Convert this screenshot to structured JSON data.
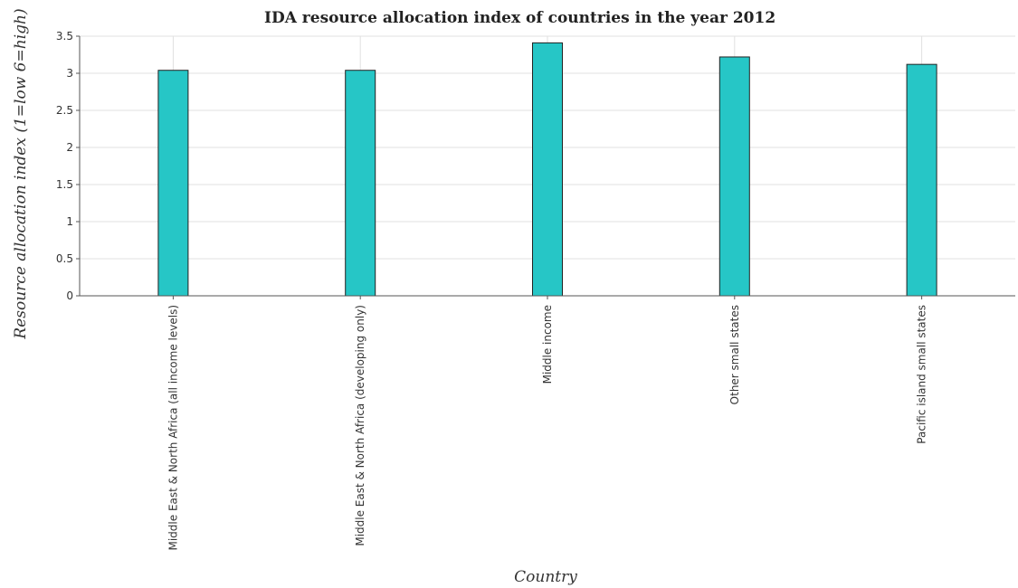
{
  "chart_data": {
    "type": "bar",
    "title": "IDA resource allocation index of countries in the year 2012",
    "xlabel": "Country",
    "ylabel": "Resource allocation index (1=low 6=high)",
    "categories": [
      "Middle East & North Africa (all income levels)",
      "Middle East & North Africa (developing only)",
      "Middle income",
      "Other small states",
      "Pacific island small states"
    ],
    "values": [
      3.04,
      3.04,
      3.41,
      3.22,
      3.12
    ],
    "ylim": [
      0,
      3.5
    ],
    "yticks": [
      "0",
      "0.5",
      "1",
      "1.5",
      "2",
      "2.5",
      "3",
      "3.5"
    ],
    "grid": true,
    "bar_color": "#26c6c6"
  }
}
